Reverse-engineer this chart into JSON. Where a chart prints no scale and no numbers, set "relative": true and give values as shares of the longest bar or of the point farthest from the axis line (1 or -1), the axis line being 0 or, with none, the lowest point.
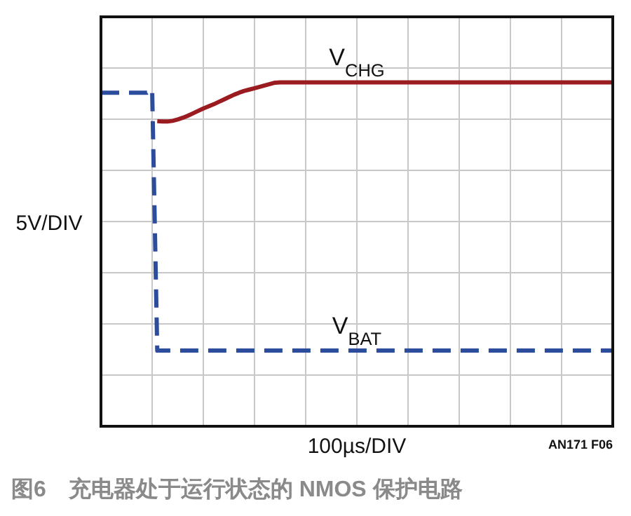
{
  "chart_data": {
    "type": "line",
    "relative": true,
    "grid": true,
    "title": "图6　充电器处于运行状态的 NMOS 保护电路",
    "xlabel": "100µs/DIV",
    "ylabel": "5V/DIV",
    "annotations": [
      "AN171 F06"
    ],
    "categories": [
      null,
      null,
      null,
      null,
      null,
      null,
      null,
      null,
      null,
      null,
      null,
      null,
      null,
      null,
      null,
      null,
      null,
      null,
      null,
      null,
      null,
      null,
      null,
      null,
      null,
      null,
      null,
      null,
      null,
      null,
      null,
      null,
      null,
      null,
      null,
      null,
      null,
      null,
      null,
      null,
      null,
      null,
      null,
      null,
      null,
      null,
      null,
      null,
      null,
      null,
      null,
      null,
      null,
      null,
      null,
      null,
      null,
      null,
      null,
      null,
      null,
      null,
      null,
      null,
      null,
      null,
      null,
      null,
      null,
      null,
      null,
      null,
      null,
      null,
      null,
      null,
      null,
      null,
      null,
      null,
      null,
      null,
      null,
      null,
      null,
      null,
      null,
      null,
      null,
      null,
      null,
      null,
      null,
      null,
      null,
      null,
      null,
      null,
      null,
      null,
      null
    ],
    "series": [
      {
        "name": "V$_{CHG}$",
        "color": "#9b1c20",
        "line_style": "solid",
        "values": [
          null,
          null,
          null,
          null,
          null,
          null,
          null,
          null,
          null,
          null,
          null,
          0.887,
          0.886,
          0.886,
          0.888,
          0.892,
          0.897,
          0.903,
          0.91,
          0.917,
          0.924,
          0.93,
          0.936,
          0.943,
          0.95,
          0.957,
          0.964,
          0.97,
          0.975,
          0.979,
          0.983,
          0.987,
          0.991,
          0.995,
          0.999,
          1,
          1,
          1,
          1,
          1,
          1,
          1,
          1,
          1,
          1,
          1,
          1,
          1,
          1,
          1,
          1,
          1,
          1,
          1,
          1,
          1,
          1,
          1,
          1,
          1,
          1,
          1,
          1,
          1,
          1,
          1,
          1,
          1,
          1,
          1,
          1,
          1,
          1,
          1,
          1,
          1,
          1,
          1,
          1,
          1,
          1,
          1,
          1,
          1,
          1,
          1,
          1,
          1,
          1,
          1,
          1,
          1,
          1,
          1,
          1,
          1,
          1,
          1,
          1,
          1,
          1
        ]
      },
      {
        "name": "V$_{BAT}$",
        "color": "#2c4c9c",
        "line_style": "dashed",
        "values": [
          0.97,
          0.97,
          0.97,
          0.97,
          0.97,
          0.97,
          0.97,
          0.97,
          0.97,
          0.97,
          0.98,
          0.22,
          0.22,
          0.22,
          0.22,
          0.22,
          0.22,
          0.22,
          0.22,
          0.22,
          0.22,
          0.22,
          0.22,
          0.22,
          0.22,
          0.22,
          0.22,
          0.22,
          0.22,
          0.22,
          0.22,
          0.22,
          0.22,
          0.22,
          0.22,
          0.22,
          0.22,
          0.22,
          0.22,
          0.22,
          0.22,
          0.22,
          0.22,
          0.22,
          0.22,
          0.22,
          0.22,
          0.22,
          0.22,
          0.22,
          0.22,
          0.22,
          0.22,
          0.22,
          0.22,
          0.22,
          0.22,
          0.22,
          0.22,
          0.22,
          0.22,
          0.22,
          0.22,
          0.22,
          0.22,
          0.22,
          0.22,
          0.22,
          0.22,
          0.22,
          0.22,
          0.22,
          0.22,
          0.22,
          0.22,
          0.22,
          0.22,
          0.22,
          0.22,
          0.22,
          0.22,
          0.22,
          0.22,
          0.22,
          0.22,
          0.22,
          0.22,
          0.22,
          0.22,
          0.22,
          0.22,
          0.22,
          0.22,
          0.22,
          0.22,
          0.22,
          0.22,
          0.22,
          0.22,
          0.22,
          0.22
        ]
      }
    ]
  }
}
